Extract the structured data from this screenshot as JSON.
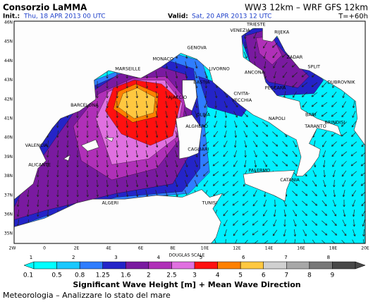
{
  "header": {
    "title": "Consorzio LaMMA",
    "models": "WW3 12km – WRF GFS 12km",
    "init_label": "Init.:",
    "init_value": "Thu, 18 APR 2013  00 UTC",
    "valid_label": "Valid:",
    "valid_value": "Sat, 20 APR 2013  12 UTC",
    "lead": "T=+60h"
  },
  "map": {
    "lat_labels": [
      "46N",
      "45N",
      "44N",
      "43N",
      "42N",
      "41N",
      "40N",
      "39N",
      "38N",
      "37N",
      "36N",
      "35N"
    ],
    "lon_labels": [
      "2W",
      "0",
      "2E",
      "4E",
      "6E",
      "8E",
      "10E",
      "12E",
      "14E",
      "16E",
      "18E",
      "20E"
    ],
    "cities": [
      "TRIESTE",
      "VENEZIA",
      "RIJEKA",
      "ZADAR",
      "SPLIT",
      "DUBROVNIK",
      "GENOVA",
      "MONACO",
      "MARSEILLE",
      "LIVORNO",
      "ANCONA",
      "PESCARA",
      "BASTIA",
      "AJACCIO",
      "CIVITA-",
      "VECCHIA",
      "BARCELONA",
      "OLBIA",
      "ALGHERO",
      "NAPOLI",
      "BARI",
      "BRINDISI",
      "TARANTO",
      "VALENCIA",
      "CAGLIARI",
      "PALERMO",
      "CATANIA",
      "ALICANTE",
      "ALGERI",
      "TUNISI"
    ]
  },
  "legend": {
    "douglas_title": "DOUGLAS SCALE",
    "douglas": [
      "1",
      "2",
      "3",
      "4",
      "5",
      "6",
      "7",
      "8"
    ],
    "colors": [
      "#00ffff",
      "#19c8ff",
      "#2f7dff",
      "#2424c8",
      "#7a1aa0",
      "#b030b8",
      "#e070e0",
      "#ff1010",
      "#ff8000",
      "#ffc840",
      "#d0d0d0",
      "#a8a8a8",
      "#787878",
      "#484848"
    ],
    "ticks": [
      "0.1",
      "0.5",
      "0.8",
      "1.25",
      "1.6",
      "2",
      "2.5",
      "3",
      "4",
      "5",
      "6",
      "7",
      "8",
      "9"
    ],
    "title": "Significant Wave Height [m] + Mean Wave Direction"
  },
  "footer": "Meteorologia – Analizzare lo stato del mare"
}
